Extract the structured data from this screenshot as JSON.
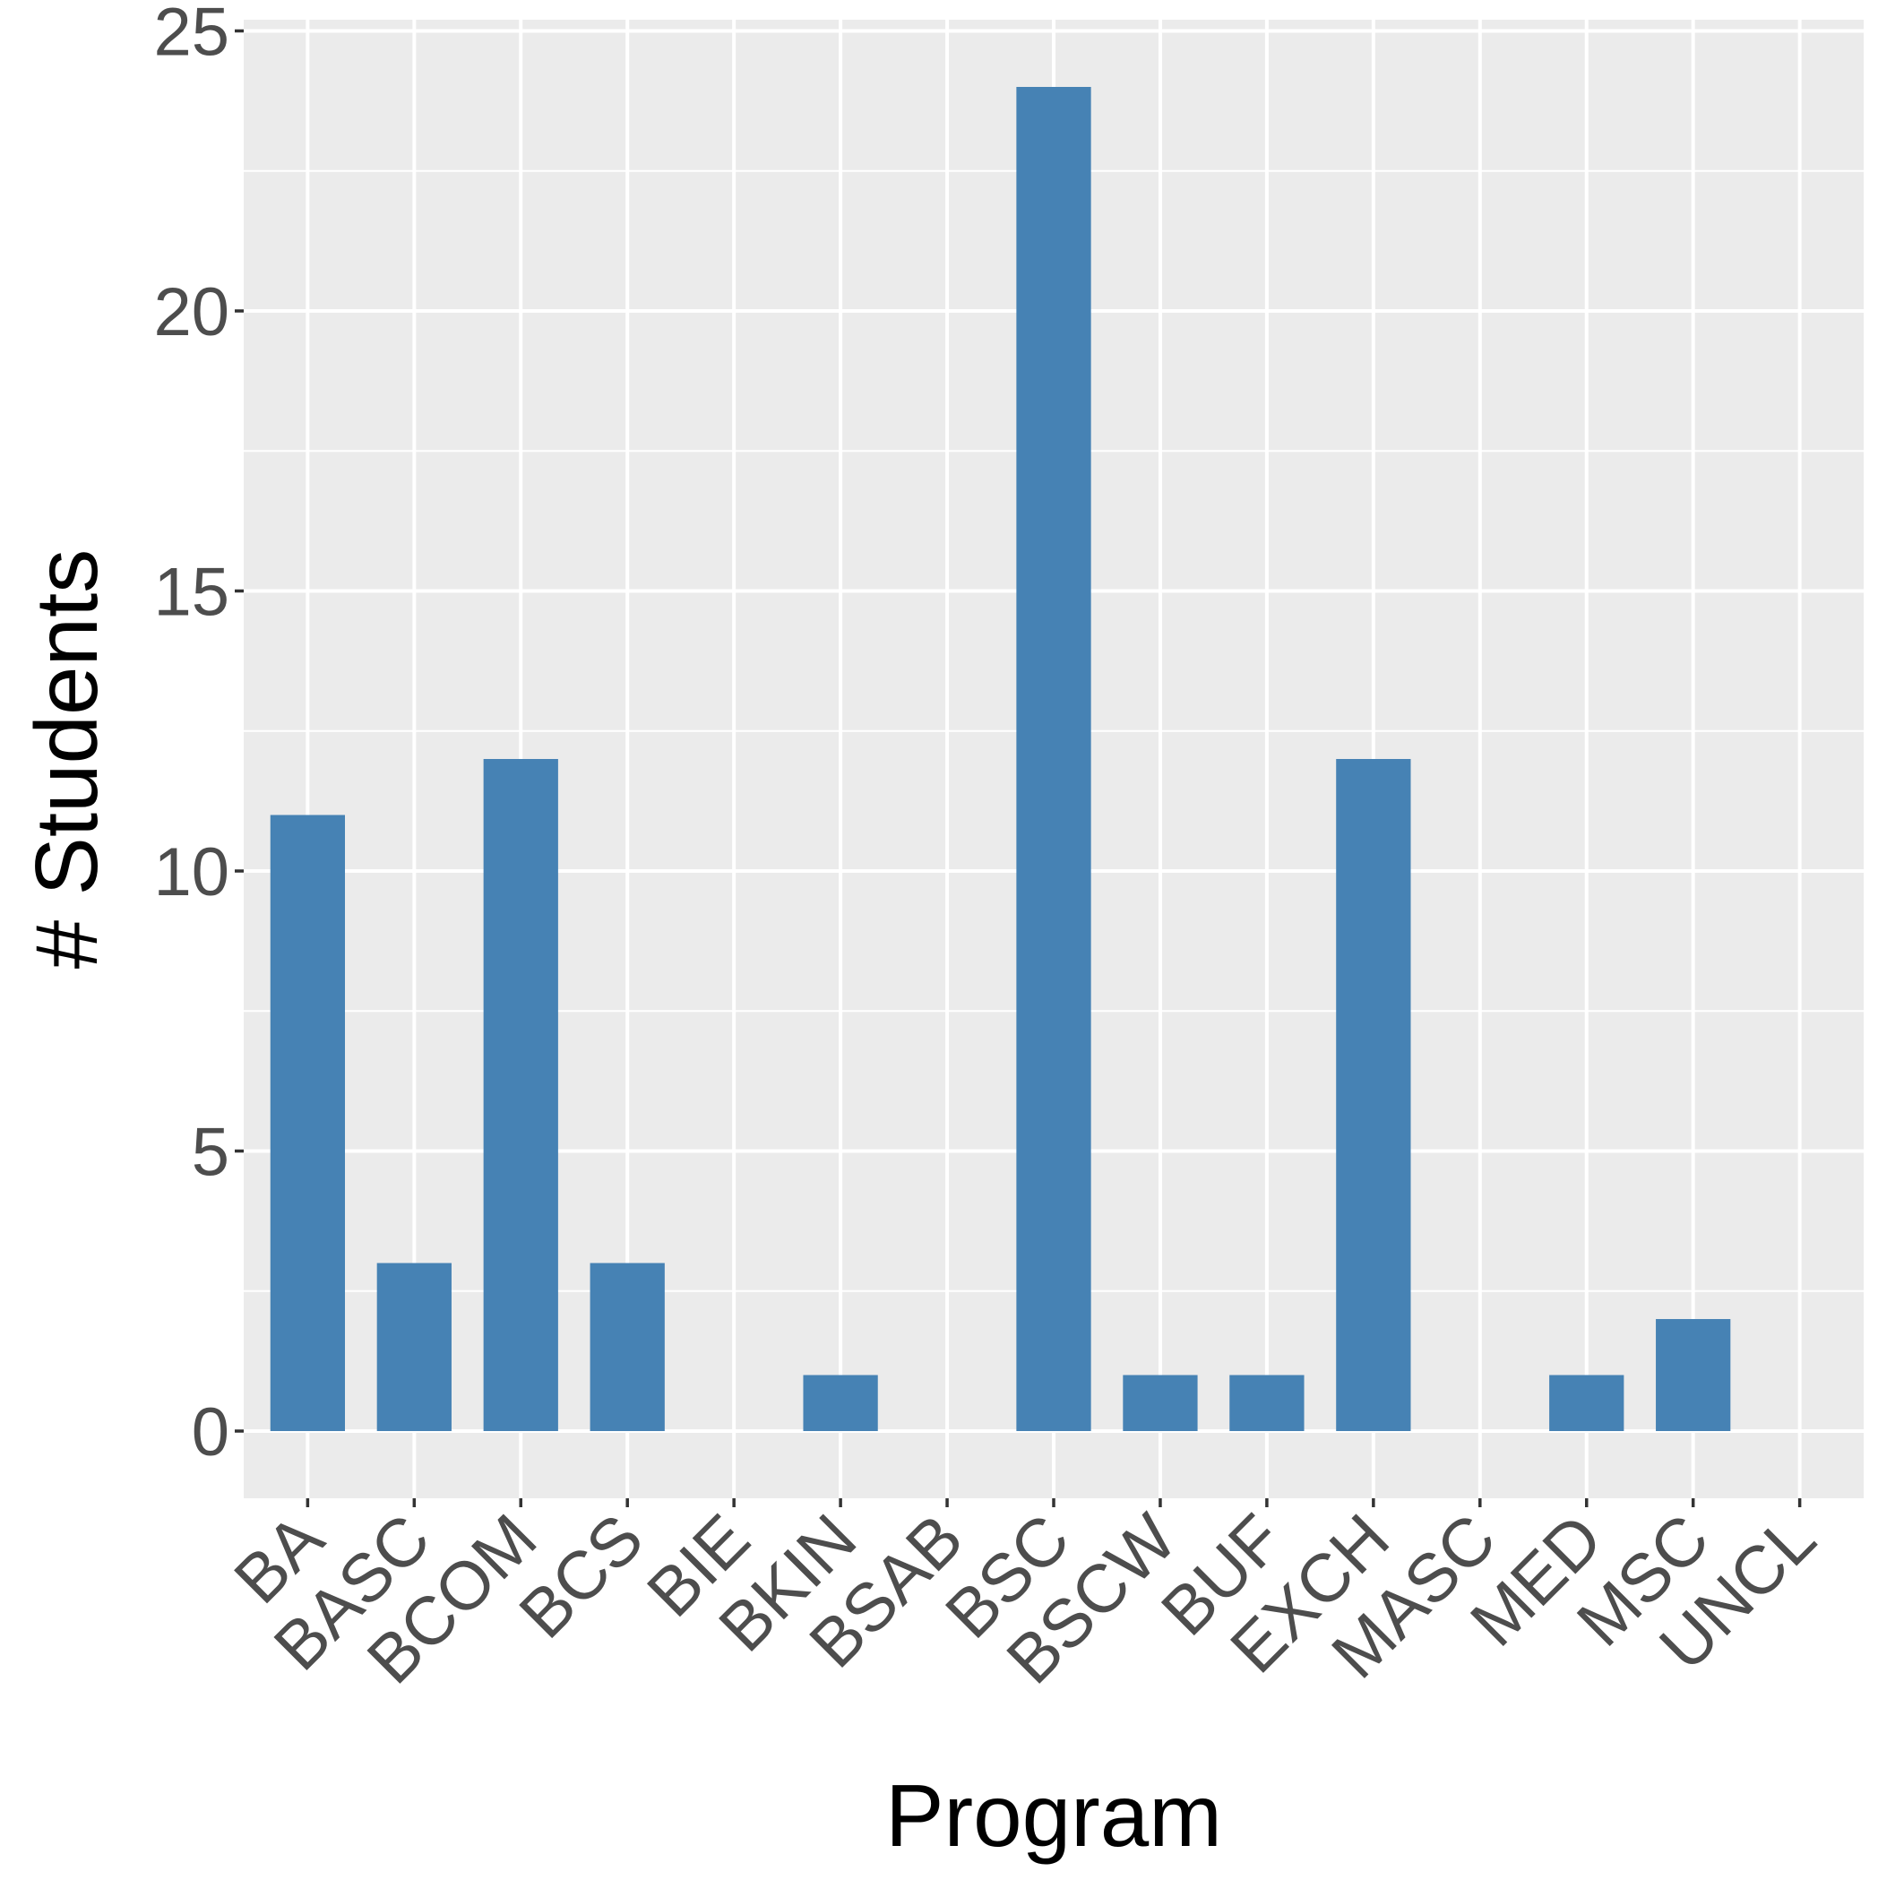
{
  "chart_data": {
    "type": "bar",
    "title": "",
    "xlabel": "Program",
    "ylabel": "# Students",
    "categories": [
      "BA",
      "BASC",
      "BCOM",
      "BCS",
      "BIE",
      "BKIN",
      "BSAB",
      "BSC",
      "BSCW",
      "BUF",
      "EXCH",
      "MASC",
      "MED",
      "MSC",
      "UNCL"
    ],
    "values": [
      11,
      3,
      12,
      3,
      0,
      1,
      0,
      24,
      1,
      1,
      12,
      0,
      1,
      2,
      0
    ],
    "ylim": [
      -1.2,
      25.2
    ],
    "yticks": [
      0,
      5,
      10,
      15,
      20,
      25
    ],
    "ytick_labels": [
      "0",
      "5",
      "10",
      "15",
      "20",
      "25"
    ],
    "grid": true,
    "legend": "none",
    "colors": {
      "bar": "#4682b4",
      "panel_background": "#ebebeb",
      "grid": "#ffffff",
      "tick_text": "#4d4d4d",
      "axis_title": "#000000"
    }
  }
}
